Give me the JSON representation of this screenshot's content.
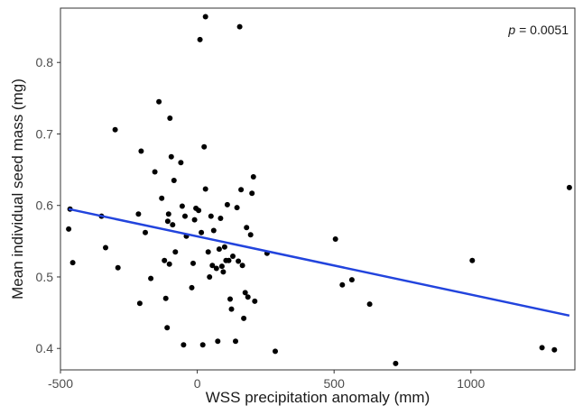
{
  "chart_data": {
    "type": "scatter",
    "xlabel": "WSS precipitation anomaly (mm)",
    "ylabel": "Mean individual seed mass (mg)",
    "xlim": [
      -500,
      1380
    ],
    "ylim": [
      0.37,
      0.876
    ],
    "x_ticks": [
      -500,
      0,
      500,
      1000
    ],
    "x_tick_labels": [
      "-500",
      "0",
      "500",
      "1000"
    ],
    "y_ticks": [
      0.4,
      0.5,
      0.6,
      0.7,
      0.8
    ],
    "y_tick_labels": [
      "0.4",
      "0.5",
      "0.6",
      "0.7",
      "0.8"
    ],
    "grid": false,
    "annotation": {
      "prefix": "p",
      "text": " = 0.0051",
      "position": "top-right"
    },
    "point_color": "#000000",
    "fit_line": {
      "color": "#2244dd",
      "x": [
        -470,
        1360
      ],
      "y": [
        0.595,
        0.446
      ]
    },
    "points": [
      {
        "x": -470,
        "y": 0.567
      },
      {
        "x": -465,
        "y": 0.595
      },
      {
        "x": -455,
        "y": 0.52
      },
      {
        "x": -350,
        "y": 0.585
      },
      {
        "x": -335,
        "y": 0.541
      },
      {
        "x": -300,
        "y": 0.706
      },
      {
        "x": -290,
        "y": 0.513
      },
      {
        "x": -215,
        "y": 0.588
      },
      {
        "x": -205,
        "y": 0.676
      },
      {
        "x": -210,
        "y": 0.463
      },
      {
        "x": -190,
        "y": 0.562
      },
      {
        "x": -170,
        "y": 0.498
      },
      {
        "x": -155,
        "y": 0.647
      },
      {
        "x": -140,
        "y": 0.745
      },
      {
        "x": -130,
        "y": 0.61
      },
      {
        "x": -120,
        "y": 0.523
      },
      {
        "x": -115,
        "y": 0.47
      },
      {
        "x": -110,
        "y": 0.429
      },
      {
        "x": -108,
        "y": 0.578
      },
      {
        "x": -105,
        "y": 0.588
      },
      {
        "x": -102,
        "y": 0.518
      },
      {
        "x": -100,
        "y": 0.722
      },
      {
        "x": -95,
        "y": 0.668
      },
      {
        "x": -90,
        "y": 0.573
      },
      {
        "x": -85,
        "y": 0.635
      },
      {
        "x": -80,
        "y": 0.535
      },
      {
        "x": -60,
        "y": 0.66
      },
      {
        "x": -55,
        "y": 0.599
      },
      {
        "x": -50,
        "y": 0.405
      },
      {
        "x": -45,
        "y": 0.585
      },
      {
        "x": -40,
        "y": 0.557
      },
      {
        "x": -20,
        "y": 0.485
      },
      {
        "x": -15,
        "y": 0.519
      },
      {
        "x": -10,
        "y": 0.58
      },
      {
        "x": -5,
        "y": 0.596
      },
      {
        "x": 5,
        "y": 0.593
      },
      {
        "x": 10,
        "y": 0.832
      },
      {
        "x": 15,
        "y": 0.562
      },
      {
        "x": 20,
        "y": 0.405
      },
      {
        "x": 25,
        "y": 0.682
      },
      {
        "x": 30,
        "y": 0.864
      },
      {
        "x": 30,
        "y": 0.623
      },
      {
        "x": 40,
        "y": 0.535
      },
      {
        "x": 45,
        "y": 0.5
      },
      {
        "x": 50,
        "y": 0.585
      },
      {
        "x": 55,
        "y": 0.516
      },
      {
        "x": 60,
        "y": 0.565
      },
      {
        "x": 70,
        "y": 0.512
      },
      {
        "x": 75,
        "y": 0.41
      },
      {
        "x": 80,
        "y": 0.539
      },
      {
        "x": 85,
        "y": 0.582
      },
      {
        "x": 90,
        "y": 0.515
      },
      {
        "x": 95,
        "y": 0.507
      },
      {
        "x": 100,
        "y": 0.542
      },
      {
        "x": 105,
        "y": 0.523
      },
      {
        "x": 110,
        "y": 0.601
      },
      {
        "x": 115,
        "y": 0.523
      },
      {
        "x": 120,
        "y": 0.469
      },
      {
        "x": 125,
        "y": 0.455
      },
      {
        "x": 130,
        "y": 0.529
      },
      {
        "x": 140,
        "y": 0.41
      },
      {
        "x": 145,
        "y": 0.597
      },
      {
        "x": 150,
        "y": 0.522
      },
      {
        "x": 155,
        "y": 0.85
      },
      {
        "x": 160,
        "y": 0.622
      },
      {
        "x": 165,
        "y": 0.516
      },
      {
        "x": 170,
        "y": 0.442
      },
      {
        "x": 175,
        "y": 0.478
      },
      {
        "x": 180,
        "y": 0.569
      },
      {
        "x": 185,
        "y": 0.472
      },
      {
        "x": 195,
        "y": 0.559
      },
      {
        "x": 200,
        "y": 0.617
      },
      {
        "x": 205,
        "y": 0.64
      },
      {
        "x": 210,
        "y": 0.466
      },
      {
        "x": 255,
        "y": 0.533
      },
      {
        "x": 285,
        "y": 0.396
      },
      {
        "x": 505,
        "y": 0.553
      },
      {
        "x": 530,
        "y": 0.489
      },
      {
        "x": 565,
        "y": 0.496
      },
      {
        "x": 630,
        "y": 0.462
      },
      {
        "x": 725,
        "y": 0.379
      },
      {
        "x": 1005,
        "y": 0.523
      },
      {
        "x": 1260,
        "y": 0.401
      },
      {
        "x": 1305,
        "y": 0.398
      },
      {
        "x": 1360,
        "y": 0.625
      }
    ]
  }
}
